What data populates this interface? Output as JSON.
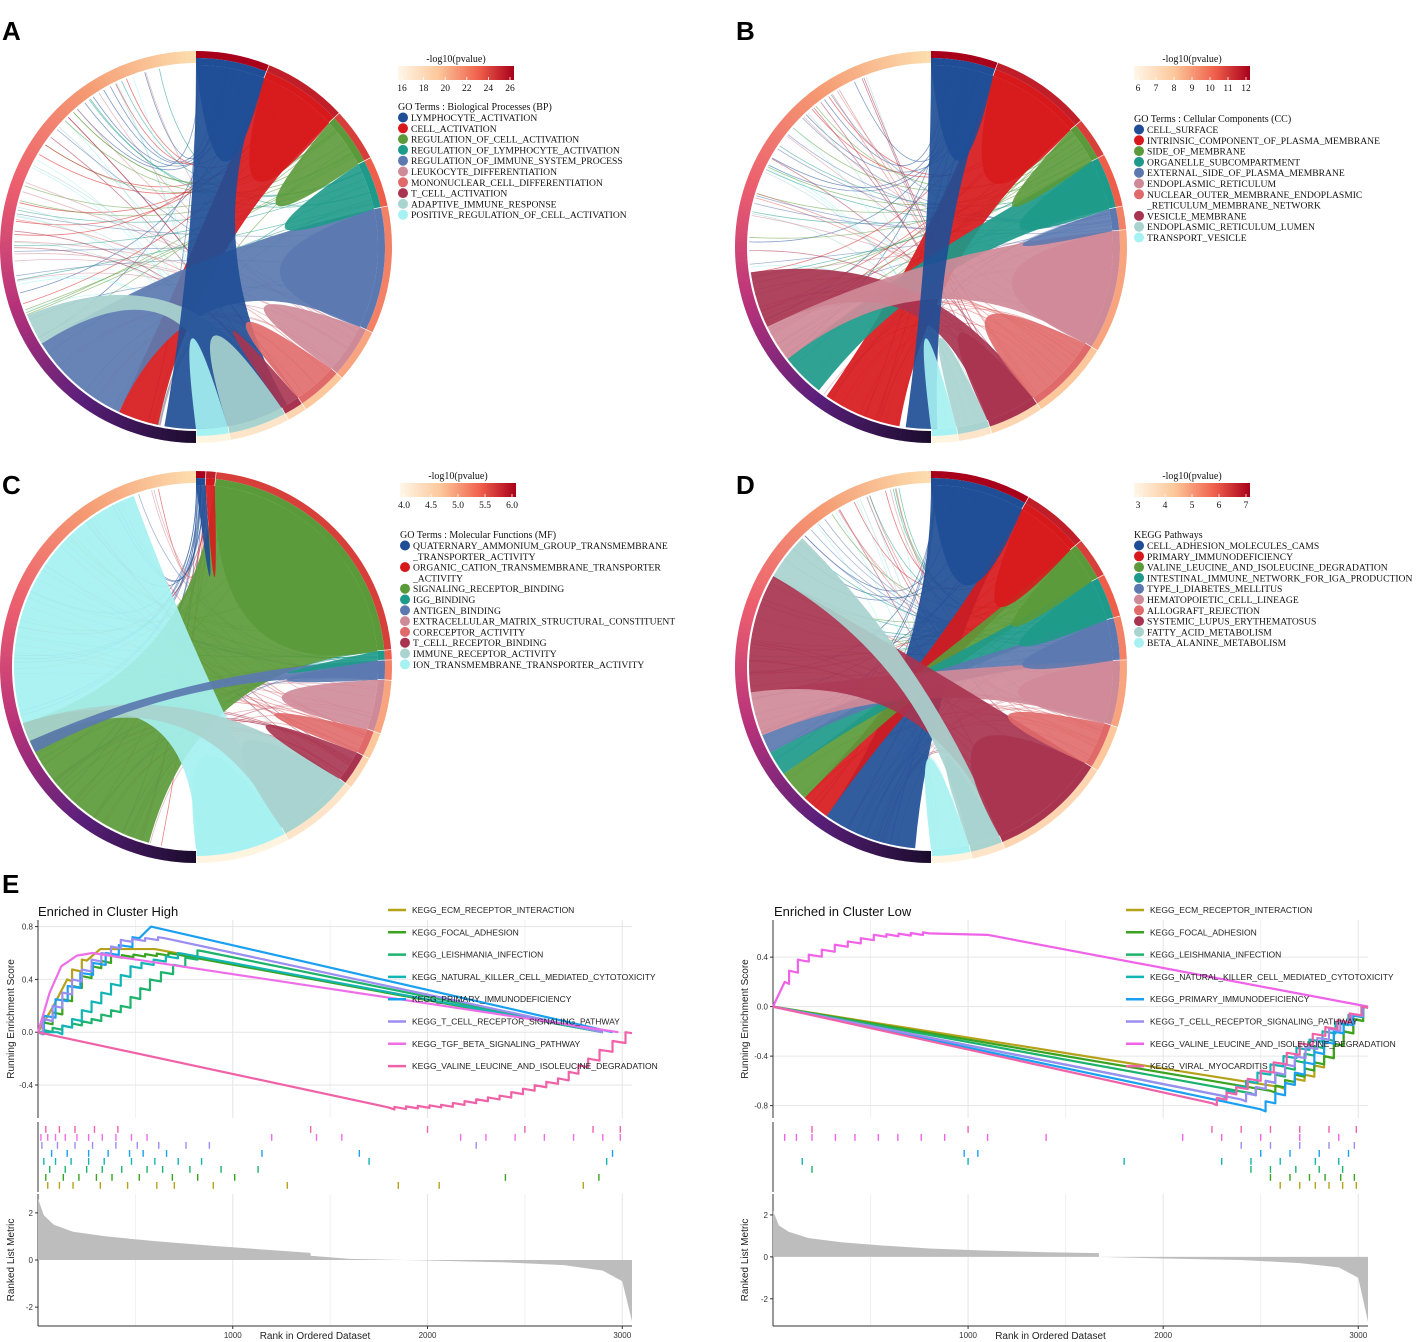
{
  "colors": {
    "term": [
      "#1f4e96",
      "#d7191c",
      "#5b9a3a",
      "#1e9a8a",
      "#5b79b0",
      "#cf8a98",
      "#e06a6a",
      "#a83450",
      "#a9d3cf",
      "#a6f1f1"
    ],
    "gsea_high": [
      "#b5a21a",
      "#3aa320",
      "#1db36d",
      "#13b4b4",
      "#1aa0f0",
      "#9b8ef0",
      "#ee6ee8",
      "#f062a8"
    ],
    "gsea_low": [
      "#b5a21a",
      "#3aa320",
      "#1db36d",
      "#13b4b4",
      "#1aa0f0",
      "#9b8ef0",
      "#f062e8",
      "#f062a8"
    ],
    "metric_fill": "#bdbdbd"
  },
  "panels": [
    {
      "letter": "A",
      "scale_title": "-log10(pvalue)",
      "scale_ticks": [
        "16",
        "18",
        "20",
        "22",
        "24",
        "26"
      ],
      "legend_title": "GO Terms : Biological Processes (BP)",
      "terms": [
        {
          "label": "LYMPHOCYTE_ACTIVATION"
        },
        {
          "label": "CELL_ACTIVATION"
        },
        {
          "label": "REGULATION_OF_CELL_ACTIVATION"
        },
        {
          "label": "REGULATION_OF_LYMPHOCYTE_ACTIVATION"
        },
        {
          "label": "REGULATION_OF_IMMUNE_SYSTEM_PROCESS"
        },
        {
          "label": "LEUKOCYTE_DIFFERENTIATION"
        },
        {
          "label": "MONONUCLEAR_CELL_DIFFERENTIATION"
        },
        {
          "label": "T_CELL_ACTIVATION"
        },
        {
          "label": "ADAPTIVE_IMMUNE_RESPONSE"
        },
        {
          "label": "POSITIVE_REGULATION_OF_CELL_ACTIVATION"
        }
      ]
    },
    {
      "letter": "B",
      "scale_title": "-log10(pvalue)",
      "scale_ticks": [
        "6",
        "7",
        "8",
        "9",
        "10",
        "11",
        "12"
      ],
      "legend_title": "GO Terms : Cellular Components (CC)",
      "terms": [
        {
          "label": "CELL_SURFACE"
        },
        {
          "label": "INTRINSIC_COMPONENT_OF_PLASMA_MEMBRANE"
        },
        {
          "label": "SIDE_OF_MEMBRANE"
        },
        {
          "label": "ORGANELLE_SUBCOMPARTMENT"
        },
        {
          "label": "EXTERNAL_SIDE_OF_PLASMA_MEMBRANE"
        },
        {
          "label": "ENDOPLASMIC_RETICULUM"
        },
        {
          "label": "NUCLEAR_OUTER_MEMBRANE_ENDOPLASMIC",
          "label2": "_RETICULUM_MEMBRANE_NETWORK"
        },
        {
          "label": "VESICLE_MEMBRANE"
        },
        {
          "label": "ENDOPLASMIC_RETICULUM_LUMEN"
        },
        {
          "label": "TRANSPORT_VESICLE"
        }
      ]
    },
    {
      "letter": "C",
      "scale_title": "-log10(pvalue)",
      "scale_ticks": [
        "4.0",
        "4.5",
        "5.0",
        "5.5",
        "6.0"
      ],
      "legend_title": "GO Terms : Molecular Functions (MF)",
      "terms": [
        {
          "label": "QUATERNARY_AMMONIUM_GROUP_TRANSMEMBRANE",
          "label2": "_TRANSPORTER_ACTIVITY"
        },
        {
          "label": "ORGANIC_CATION_TRANSMEMBRANE_TRANSPORTER",
          "label2": "_ACTIVITY"
        },
        {
          "label": "SIGNALING_RECEPTOR_BINDING"
        },
        {
          "label": "IGG_BINDING"
        },
        {
          "label": "ANTIGEN_BINDING"
        },
        {
          "label": "EXTRACELLULAR_MATRIX_STRUCTURAL_CONSTITUENT"
        },
        {
          "label": "CORECEPTOR_ACTIVITY"
        },
        {
          "label": "T_CELL_RECEPTOR_BINDING"
        },
        {
          "label": "IMMUNE_RECEPTOR_ACTIVITY"
        },
        {
          "label": "ION_TRANSMEMBRANE_TRANSPORTER_ACTIVITY"
        }
      ]
    },
    {
      "letter": "D",
      "scale_title": "-log10(pvalue)",
      "scale_ticks": [
        "3",
        "4",
        "5",
        "6",
        "7"
      ],
      "legend_title": "KEGG Pathways",
      "terms": [
        {
          "label": "CELL_ADHESION_MOLECULES_CAMS"
        },
        {
          "label": "PRIMARY_IMMUNODEFICIENCY"
        },
        {
          "label": "VALINE_LEUCINE_AND_ISOLEUCINE_DEGRADATION"
        },
        {
          "label": "INTESTINAL_IMMUNE_NETWORK_FOR_IGA_PRODUCTION"
        },
        {
          "label": "TYPE_I_DIABETES_MELLITUS"
        },
        {
          "label": "HEMATOPOIETIC_CELL_LINEAGE"
        },
        {
          "label": "ALLOGRAFT_REJECTION"
        },
        {
          "label": "SYSTEMIC_LUPUS_ERYTHEMATOSUS"
        },
        {
          "label": "FATTY_ACID_METABOLISM"
        },
        {
          "label": "BETA_ALANINE_METABOLISM"
        }
      ]
    }
  ],
  "panel_e_letter": "E",
  "chart_data": [
    {
      "type": "line",
      "title": "Enriched in Cluster High",
      "ylabel": "Running Enrichment Score",
      "ylim": [
        -0.65,
        0.85
      ],
      "yticks": [
        "0.8",
        "0.4",
        "0.0",
        "-0.4"
      ],
      "ytick_values": [
        0.8,
        0.4,
        0.0,
        -0.4
      ],
      "metric_ylabel": "Ranked List Metric",
      "metric_yticks": [
        "2",
        "0",
        "-2"
      ],
      "metric_ytick_values": [
        2,
        0,
        -2
      ],
      "metric_ylim": [
        -2.8,
        2.8
      ],
      "metric_values": [
        2.6,
        1.9,
        1.5,
        1.2,
        1.0,
        0.8,
        0.6,
        0.42,
        0.3,
        0.18,
        0.05,
        -0.02,
        -0.1,
        -0.22,
        -0.45,
        -0.9,
        -2.6
      ],
      "metric_positions": [
        0,
        30,
        80,
        180,
        350,
        600,
        900,
        1200,
        1399,
        1400,
        1600,
        2000,
        2400,
        2700,
        2900,
        3000,
        3050
      ],
      "xlabel": "Rank in Ordered Dataset",
      "xlim": [
        0,
        3050
      ],
      "xticks": [
        "1000",
        "2000",
        "3000"
      ],
      "xtick_values": [
        1000,
        2000,
        3000
      ],
      "series": [
        {
          "name": "KEGG_ECM_RECEPTOR_INTERACTION",
          "x": [
            0,
            80,
            150,
            250,
            320,
            600,
            2900
          ],
          "y": [
            0.0,
            0.2,
            0.4,
            0.55,
            0.63,
            0.63,
            0.0
          ]
        },
        {
          "name": "KEGG_FOCAL_ADHESION",
          "x": [
            0,
            100,
            200,
            300,
            400,
            700,
            2900
          ],
          "y": [
            0.0,
            0.15,
            0.35,
            0.5,
            0.58,
            0.6,
            0.0
          ]
        },
        {
          "name": "KEGG_LEISHMANIA_INFECTION",
          "x": [
            0,
            150,
            300,
            450,
            600,
            850,
            2900
          ],
          "y": [
            0.0,
            0.05,
            0.1,
            0.2,
            0.4,
            0.62,
            0.0
          ]
        },
        {
          "name": "KEGG_NATURAL_KILLER_CELL_MEDIATED_CYTOTOXICITY",
          "x": [
            0,
            100,
            200,
            350,
            500,
            750,
            2900
          ],
          "y": [
            0.0,
            0.0,
            0.1,
            0.3,
            0.5,
            0.6,
            0.0
          ]
        },
        {
          "name": "KEGG_PRIMARY_IMMUNODEFICIENCY",
          "x": [
            0,
            120,
            250,
            380,
            520,
            580,
            2950
          ],
          "y": [
            0.0,
            0.25,
            0.45,
            0.6,
            0.72,
            0.8,
            0.0
          ]
        },
        {
          "name": "KEGG_T_CELL_RECEPTOR_SIGNALING_PATHWAY",
          "x": [
            0,
            100,
            200,
            300,
            450,
            650,
            2900
          ],
          "y": [
            0.0,
            0.2,
            0.4,
            0.55,
            0.7,
            0.72,
            0.0
          ]
        },
        {
          "name": "KEGG_TGF_BETA_SIGNALING_PATHWAY",
          "x": [
            0,
            60,
            120,
            200,
            280,
            2980
          ],
          "y": [
            0.0,
            0.3,
            0.5,
            0.58,
            0.6,
            0.0
          ]
        },
        {
          "name": "KEGG_VALINE_LEUCINE_AND_ISOLEUCINE_DEGRADATION",
          "x": [
            0,
            1800,
            2100,
            2400,
            2700,
            2850,
            3050
          ],
          "y": [
            0.0,
            -0.57,
            -0.55,
            -0.48,
            -0.35,
            -0.2,
            0.0
          ]
        }
      ],
      "hits": [
        [
          50,
          110,
          180,
          320,
          460,
          610,
          700,
          900,
          1280,
          1850,
          2060,
          2800
        ],
        [
          40,
          130,
          210,
          300,
          380,
          520,
          690,
          820,
          1010,
          2400,
          2880
        ],
        [
          60,
          140,
          250,
          330,
          430,
          560,
          640,
          780,
          940,
          1130
        ],
        [
          30,
          90,
          170,
          260,
          340,
          480,
          600,
          720,
          840,
          1700,
          2920
        ],
        [
          70,
          150,
          260,
          360,
          470,
          540,
          660,
          1150,
          1650,
          2950
        ],
        [
          20,
          100,
          190,
          280,
          400,
          510,
          620,
          760,
          880,
          2250
        ],
        [
          15,
          50,
          90,
          140,
          200,
          260,
          330,
          400,
          480,
          560,
          1200,
          1430,
          1560,
          2170,
          2300,
          2450,
          2600,
          2750,
          2900,
          2990
        ],
        [
          40,
          110,
          190,
          290,
          410,
          1400,
          2000,
          2500,
          2850,
          2990
        ]
      ]
    },
    {
      "type": "line",
      "title": "Enriched in Cluster Low",
      "ylabel": "Running Enrichment Score",
      "ylim": [
        -0.9,
        0.7
      ],
      "yticks": [
        "0.4",
        "0.0",
        "-0.4",
        "-0.8"
      ],
      "ytick_values": [
        0.4,
        0.0,
        -0.4,
        -0.8
      ],
      "metric_ylabel": "Ranked List Metric",
      "metric_yticks": [
        "2",
        "0",
        "-2"
      ],
      "metric_ytick_values": [
        2,
        0,
        -2
      ],
      "metric_ylim": [
        -3.3,
        3.0
      ],
      "metric_values": [
        2.2,
        1.5,
        1.2,
        0.9,
        0.7,
        0.55,
        0.4,
        0.3,
        0.22,
        0.18,
        0.0,
        -0.08,
        -0.15,
        -0.3,
        -0.5,
        -1.0,
        -3.1
      ],
      "metric_positions": [
        0,
        30,
        80,
        180,
        350,
        550,
        800,
        1100,
        1400,
        1670,
        1671,
        2000,
        2400,
        2700,
        2900,
        3000,
        3050
      ],
      "xlabel": "Rank in Ordered Dataset",
      "xlim": [
        0,
        3050
      ],
      "xticks": [
        "1000",
        "2000",
        "3000"
      ],
      "xtick_values": [
        1000,
        2000,
        3000
      ],
      "series": [
        {
          "name": "KEGG_ECM_RECEPTOR_INTERACTION",
          "x": [
            0,
            2600,
            2750,
            2850,
            2950,
            3050
          ],
          "y": [
            0.0,
            -0.65,
            -0.55,
            -0.4,
            -0.2,
            0.0
          ]
        },
        {
          "name": "KEGG_FOCAL_ADHESION",
          "x": [
            0,
            2550,
            2700,
            2850,
            2950,
            3050
          ],
          "y": [
            0.0,
            -0.68,
            -0.55,
            -0.4,
            -0.2,
            0.0
          ]
        },
        {
          "name": "KEGG_LEISHMANIA_INFECTION",
          "x": [
            0,
            2450,
            2600,
            2750,
            2900,
            3050
          ],
          "y": [
            0.0,
            -0.7,
            -0.55,
            -0.38,
            -0.2,
            0.0
          ]
        },
        {
          "name": "KEGG_NATURAL_KILLER_CELL_MEDIATED_CYTOTOXICITY",
          "x": [
            0,
            2300,
            2450,
            2650,
            2850,
            3050
          ],
          "y": [
            0.0,
            -0.72,
            -0.6,
            -0.4,
            -0.2,
            0.0
          ]
        },
        {
          "name": "KEGG_PRIMARY_IMMUNODEFICIENCY",
          "x": [
            0,
            2500,
            2600,
            2750,
            2900,
            3050
          ],
          "y": [
            0.0,
            -0.83,
            -0.7,
            -0.45,
            -0.2,
            0.0
          ]
        },
        {
          "name": "KEGG_T_CELL_RECEPTOR_SIGNALING_PATHWAY",
          "x": [
            0,
            2400,
            2550,
            2700,
            2880,
            3050
          ],
          "y": [
            0.0,
            -0.75,
            -0.6,
            -0.4,
            -0.18,
            0.0
          ]
        },
        {
          "name": "KEGG_VALINE_LEUCINE_AND_ISOLEUCINE_DEGRADATION",
          "x": [
            0,
            60,
            150,
            350,
            550,
            800,
            1100,
            3050
          ],
          "y": [
            0.0,
            0.2,
            0.38,
            0.5,
            0.58,
            0.6,
            0.58,
            0.0
          ]
        },
        {
          "name": "KEGG_VIRAL_MYOCARDITIS",
          "x": [
            0,
            2250,
            2400,
            2600,
            2800,
            3050
          ],
          "y": [
            0.0,
            -0.78,
            -0.65,
            -0.45,
            -0.22,
            0.0
          ]
        }
      ],
      "hits": [
        [
          2600,
          2700,
          2780,
          2850,
          2920,
          2990
        ],
        [
          2550,
          2650,
          2750,
          2830,
          2910,
          2980
        ],
        [
          200,
          2450,
          2550,
          2680,
          2800,
          2920
        ],
        [
          150,
          1000,
          1800,
          2300,
          2450,
          2600,
          2780,
          2900
        ],
        [
          980,
          1050,
          2500,
          2650,
          2800,
          2950
        ],
        [
          2400,
          2550,
          2700,
          2850,
          2980
        ],
        [
          60,
          120,
          200,
          320,
          420,
          540,
          640,
          760,
          880,
          1100,
          1400,
          2100,
          2300,
          2500,
          2700,
          2900
        ],
        [
          200,
          1000,
          2250,
          2400,
          2550,
          2700,
          2850,
          2990
        ]
      ]
    }
  ]
}
